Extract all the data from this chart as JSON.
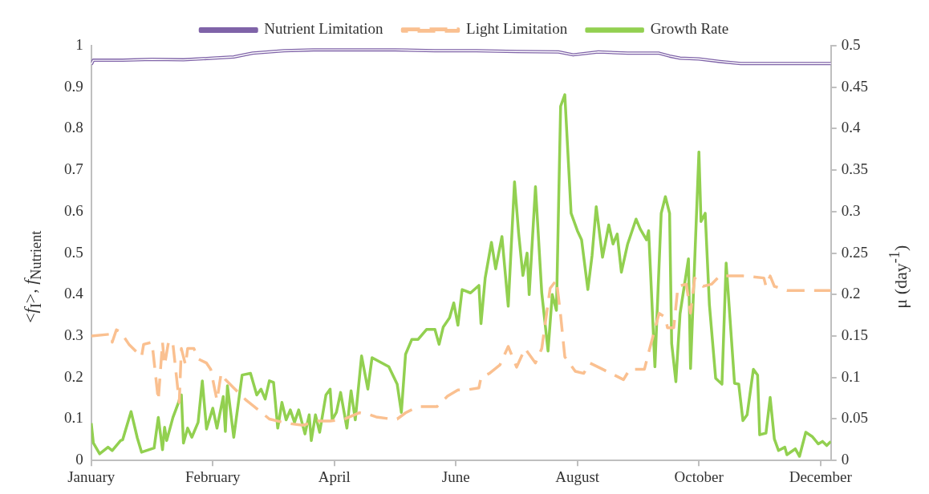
{
  "chart_data": {
    "type": "line",
    "ylabel": "<f$_{I}$>, f$_{Nutrient}$",
    "y2label": "μ (day$^{-1}$)",
    "legend": "top",
    "grid": false,
    "marker": "none",
    "xlim": [
      "--01-01",
      "--12-20"
    ],
    "xticks": [
      {
        "value": "--01-01",
        "label": "January"
      },
      {
        "value": "--02-28",
        "label": "February"
      },
      {
        "value": "--04-27",
        "label": "April"
      },
      {
        "value": "--06-24",
        "label": "June"
      },
      {
        "value": "--08-21",
        "label": "August"
      },
      {
        "value": "--10-18",
        "label": "October"
      },
      {
        "value": "--12-15",
        "label": "December"
      }
    ],
    "ylim": [
      0,
      1
    ],
    "yticks": [
      0,
      0.1,
      0.2,
      0.3,
      0.4,
      0.5,
      0.6,
      0.7,
      0.8,
      0.9,
      1
    ],
    "y2lim": [
      0,
      0.5
    ],
    "y2ticks": [
      0,
      0.05,
      0.1,
      0.15,
      0.2,
      0.25,
      0.3,
      0.35,
      0.4,
      0.45,
      0.5
    ],
    "series": [
      {
        "name": "Nutrient Limitation",
        "color": "#7f63a8",
        "line_style": "solid",
        "x": [
          "--01-01",
          "--01-02",
          "--01-16",
          "--01-30",
          "--02-14",
          "--02-28",
          "--03-10",
          "--03-19",
          "--04-03",
          "--04-17",
          "--05-07",
          "--05-26",
          "--06-14",
          "--07-04",
          "--07-23",
          "--08-12",
          "--08-19",
          "--08-31",
          "--09-14",
          "--09-29",
          "--10-04",
          "--10-09",
          "--10-18",
          "--10-28",
          "--11-07",
          "--11-26",
          "--12-20"
        ],
        "values": [
          0.955,
          0.965,
          0.965,
          0.967,
          0.966,
          0.97,
          0.973,
          0.982,
          0.988,
          0.99,
          0.99,
          0.99,
          0.988,
          0.988,
          0.986,
          0.985,
          0.978,
          0.985,
          0.982,
          0.982,
          0.975,
          0.97,
          0.968,
          0.962,
          0.957,
          0.957,
          0.957
        ]
      },
      {
        "name": "Light Limitation",
        "color": "#fac090",
        "line_style": "dashed",
        "x": [
          "--01-01",
          "--01-11",
          "--01-11",
          "--01-13",
          "--01-15",
          "--01-19",
          "--01-25",
          "--01-26",
          "--01-30",
          "--02-02",
          "--02-04",
          "--02-05",
          "--02-07",
          "--02-09",
          "--02-12",
          "--02-13",
          "--02-15",
          "--02-16",
          "--02-19",
          "--02-21",
          "--02-25",
          "--02-27",
          "--03-02",
          "--03-04",
          "--03-06",
          "--03-10",
          "--03-16",
          "--03-21",
          "--03-27",
          "--04-04",
          "--04-12",
          "--04-19",
          "--04-25",
          "--05-02",
          "--05-09",
          "--05-14",
          "--05-17",
          "--05-24",
          "--05-27",
          "--05-31",
          "--06-06",
          "--06-15",
          "--06-20",
          "--06-25",
          "--06-29",
          "--07-05",
          "--07-06",
          "--07-10",
          "--07-15",
          "--07-19",
          "--07-23",
          "--07-27",
          "--08-01",
          "--08-04",
          "--08-08",
          "--08-11",
          "--08-13",
          "--08-15",
          "--08-20",
          "--08-24",
          "--08-27",
          "--09-02",
          "--09-12",
          "--09-15",
          "--09-22",
          "--09-24",
          "--09-29",
          "--10-02",
          "--10-03",
          "--10-06",
          "--10-08",
          "--10-12",
          "--10-14",
          "--10-16",
          "--10-20",
          "--10-24",
          "--10-28",
          "--11-08",
          "--11-18",
          "--11-19",
          "--11-21",
          "--11-23",
          "--11-29",
          "--12-20"
        ],
        "values": [
          0.3,
          0.305,
          0.285,
          0.315,
          0.31,
          0.28,
          0.25,
          0.28,
          0.285,
          0.145,
          0.285,
          0.23,
          0.29,
          0.28,
          0.14,
          0.27,
          0.23,
          0.27,
          0.27,
          0.245,
          0.235,
          0.22,
          0.145,
          0.21,
          0.195,
          0.175,
          0.145,
          0.125,
          0.1,
          0.09,
          0.085,
          0.095,
          0.095,
          0.1,
          0.115,
          0.11,
          0.105,
          0.1,
          0.1,
          0.115,
          0.13,
          0.13,
          0.155,
          0.17,
          0.17,
          0.175,
          0.2,
          0.21,
          0.23,
          0.275,
          0.225,
          0.27,
          0.235,
          0.27,
          0.415,
          0.435,
          0.35,
          0.25,
          0.215,
          0.21,
          0.235,
          0.22,
          0.195,
          0.22,
          0.22,
          0.26,
          0.355,
          0.345,
          0.32,
          0.32,
          0.42,
          0.425,
          0.355,
          0.44,
          0.42,
          0.425,
          0.445,
          0.445,
          0.44,
          0.42,
          0.445,
          0.42,
          0.41,
          0.41
        ]
      },
      {
        "name": "Growth Rate",
        "color": "#92d050",
        "line_style": "solid",
        "axis": "y2",
        "x": [
          "--01-01",
          "--01-02",
          "--01-05",
          "--01-09",
          "--01-11",
          "--01-15",
          "--01-16",
          "--01-20",
          "--01-23",
          "--01-25",
          "--01-31",
          "--02-02",
          "--02-04",
          "--02-05",
          "--02-06",
          "--02-09",
          "--02-13",
          "--02-14",
          "--02-16",
          "--02-18",
          "--02-21",
          "--02-23",
          "--02-25",
          "--02-28",
          "--03-02",
          "--03-05",
          "--03-06",
          "--03-07",
          "--03-10",
          "--03-14",
          "--03-18",
          "--03-21",
          "--03-23",
          "--03-25",
          "--03-27",
          "--03-29",
          "--03-31",
          "--04-02",
          "--04-04",
          "--04-06",
          "--04-08",
          "--04-10",
          "--04-13",
          "--04-15",
          "--04-16",
          "--04-18",
          "--04-20",
          "--04-23",
          "--04-25",
          "--04-26",
          "--04-28",
          "--04-30",
          "--05-03",
          "--05-05",
          "--05-07",
          "--05-10",
          "--05-13",
          "--05-15",
          "--05-23",
          "--05-27",
          "--05-29",
          "--05-31",
          "--06-03",
          "--06-06",
          "--06-10",
          "--06-14",
          "--06-16",
          "--06-18",
          "--06-21",
          "--06-23",
          "--06-25",
          "--06-27",
          "--07-01",
          "--07-05",
          "--07-06",
          "--07-08",
          "--07-11",
          "--07-13",
          "--07-16",
          "--07-19",
          "--07-22",
          "--07-24",
          "--07-26",
          "--07-28",
          "--07-29",
          "--08-01",
          "--08-04",
          "--08-07",
          "--08-09",
          "--08-11",
          "--08-13",
          "--08-15",
          "--08-18",
          "--08-21",
          "--08-23",
          "--08-26",
          "--08-28",
          "--08-30",
          "--09-02",
          "--09-05",
          "--09-07",
          "--09-09",
          "--09-11",
          "--09-14",
          "--09-18",
          "--09-20",
          "--09-23",
          "--09-24",
          "--09-27",
          "--09-30",
          "--10-02",
          "--10-04",
          "--10-05",
          "--10-07",
          "--10-09",
          "--10-13",
          "--10-14",
          "--10-18",
          "--10-19",
          "--10-21",
          "--10-23",
          "--10-26",
          "--10-29",
          "--10-31",
          "--11-04",
          "--11-06",
          "--11-08",
          "--11-10",
          "--11-13",
          "--11-15",
          "--11-16",
          "--11-19",
          "--11-21",
          "--11-23",
          "--11-25",
          "--11-28",
          "--11-29",
          "--12-03",
          "--12-05",
          "--12-08",
          "--12-11",
          "--12-14",
          "--12-16",
          "--12-18",
          "--12-20"
        ],
        "values": [
          0.045,
          0.021,
          0.008,
          0.016,
          0.012,
          0.024,
          0.025,
          0.059,
          0.027,
          0.01,
          0.015,
          0.052,
          0.013,
          0.04,
          0.024,
          0.052,
          0.079,
          0.021,
          0.039,
          0.028,
          0.046,
          0.096,
          0.038,
          0.063,
          0.039,
          0.077,
          0.035,
          0.09,
          0.028,
          0.103,
          0.105,
          0.079,
          0.086,
          0.074,
          0.096,
          0.094,
          0.039,
          0.07,
          0.049,
          0.061,
          0.046,
          0.061,
          0.032,
          0.055,
          0.024,
          0.055,
          0.034,
          0.079,
          0.086,
          0.049,
          0.058,
          0.082,
          0.039,
          0.084,
          0.049,
          0.126,
          0.086,
          0.124,
          0.113,
          0.092,
          0.058,
          0.128,
          0.146,
          0.146,
          0.158,
          0.158,
          0.14,
          0.161,
          0.172,
          0.19,
          0.163,
          0.206,
          0.202,
          0.211,
          0.165,
          0.22,
          0.263,
          0.231,
          0.27,
          0.186,
          0.336,
          0.273,
          0.223,
          0.25,
          0.2,
          0.33,
          0.202,
          0.132,
          0.2,
          0.181,
          0.427,
          0.441,
          0.298,
          0.277,
          0.266,
          0.206,
          0.247,
          0.306,
          0.245,
          0.284,
          0.261,
          0.273,
          0.227,
          0.261,
          0.291,
          0.279,
          0.266,
          0.277,
          0.113,
          0.298,
          0.318,
          0.298,
          0.141,
          0.095,
          0.177,
          0.243,
          0.111,
          0.372,
          0.288,
          0.298,
          0.188,
          0.099,
          0.092,
          0.238,
          0.093,
          0.092,
          0.048,
          0.055,
          0.11,
          0.103,
          0.031,
          0.033,
          0.076,
          0.026,
          0.012,
          0.016,
          0.007,
          0.014,
          0.005,
          0.034,
          0.029,
          0.02,
          0.023,
          0.018,
          0.023
        ]
      }
    ]
  }
}
